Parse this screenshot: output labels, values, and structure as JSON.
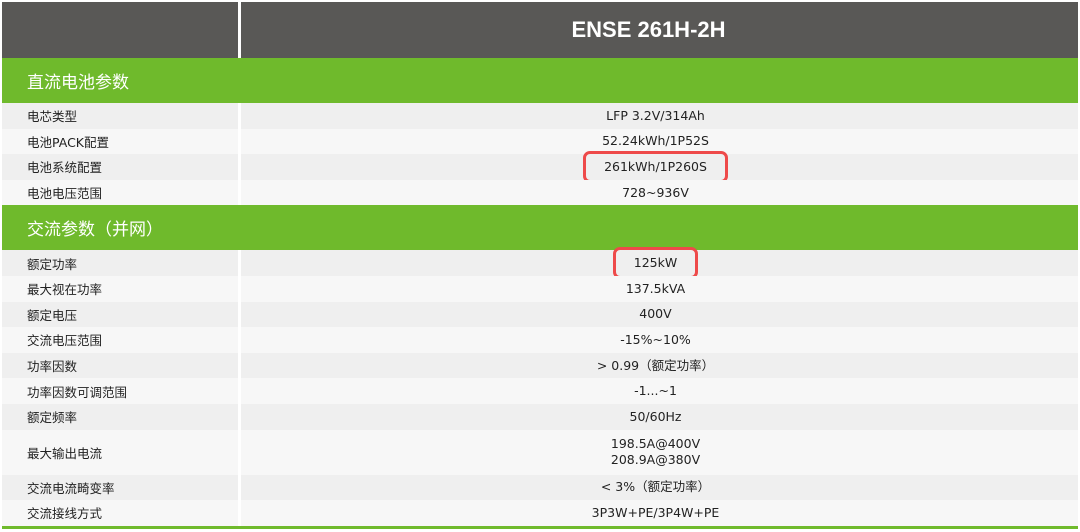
{
  "header": {
    "model": "ENSE 261H-2H"
  },
  "sections": [
    {
      "title": "直流电池参数",
      "rows": [
        {
          "label": "电芯类型",
          "values": [
            "LFP 3.2V/314Ah"
          ]
        },
        {
          "label": "电池PACK配置",
          "values": [
            "52.24kWh/1P52S"
          ]
        },
        {
          "label": "电池系统配置",
          "values": [
            "261kWh/1P260S"
          ],
          "highlighted": true
        },
        {
          "label": "电池电压范围",
          "values": [
            "728~936V"
          ]
        }
      ]
    },
    {
      "title": "交流参数（并网）",
      "rows": [
        {
          "label": "额定功率",
          "values": [
            "125kW"
          ],
          "highlighted": true
        },
        {
          "label": "最大视在功率",
          "values": [
            "137.5kVA"
          ]
        },
        {
          "label": "额定电压",
          "values": [
            "400V"
          ]
        },
        {
          "label": "交流电压范围",
          "values": [
            "-15%~10%"
          ]
        },
        {
          "label": "功率因数",
          "values": [
            "> 0.99（额定功率）"
          ]
        },
        {
          "label": "功率因数可调范围",
          "values": [
            "-1...~1"
          ]
        },
        {
          "label": "额定频率",
          "values": [
            "50/60Hz"
          ]
        },
        {
          "label": "最大输出电流",
          "values": [
            "198.5A@400V",
            "208.9A@380V"
          ]
        },
        {
          "label": "交流电流畸变率",
          "values": [
            "< 3%（额定功率）"
          ]
        },
        {
          "label": "交流接线方式",
          "values": [
            "3P3W+PE/3P4W+PE"
          ]
        }
      ]
    }
  ],
  "colors": {
    "header_bg": "#595856",
    "section_bg": "#6fba2c",
    "highlight": "#ee4a4a"
  }
}
